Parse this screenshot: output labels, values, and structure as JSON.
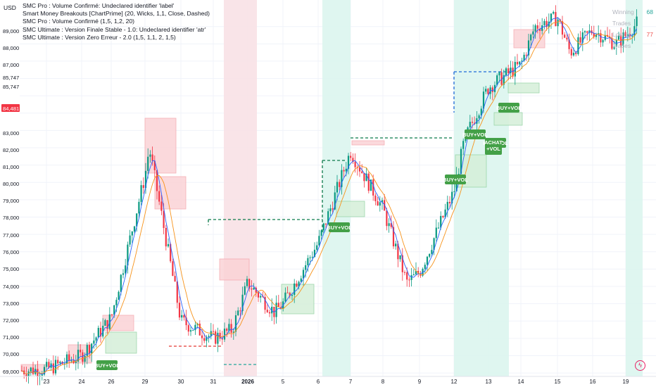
{
  "currency": "USD",
  "indicators": [
    "SMC Pro : Volume Confirmé: Undeclared identifier 'label'",
    "Smart Money Breakouts [ChartPrime] (20, Wicks, 1,1, Close, Dashed)",
    "SMC Pro : Volume Confirmé (1,5, 1,2, 20)",
    "SMC Ultimate : Version Finale Stable - 1.0: Undeclared identifier 'atr'",
    "SMC Ultimate : Version Zero Erreur - 2.0 (1,5, 1,1, 2, 1,5)"
  ],
  "stats": [
    {
      "label": "Winning Trades",
      "value": "68"
    },
    {
      "label": "Losing Trades",
      "value": "77"
    }
  ],
  "current_price": "84,481",
  "price_labels": [
    "89,000",
    "88,000",
    "87,000",
    "85,747",
    "85,747",
    "84,481",
    "83,000",
    "82,000",
    "81,000",
    "80,000",
    "79,000",
    "78,000",
    "77,000",
    "76,000",
    "75,000",
    "74,000",
    "73,000",
    "72,000",
    "71,000",
    "70,000",
    "69,000"
  ],
  "date_labels": [
    "23",
    "24",
    "26",
    "29",
    "30",
    "31",
    "2026",
    "5",
    "6",
    "7",
    "8",
    "9",
    "12",
    "13",
    "14",
    "15",
    "16",
    "19"
  ],
  "signals": [
    "BUY+VOL",
    "BUY+VOL",
    "BUY+VOL",
    "BUY+VOL",
    "BUY+VOL",
    "BUY+VOL",
    "ACHAT +VOL"
  ],
  "colors": {
    "up": "#089981",
    "down": "#f23645",
    "ma_fast": "#2962ff",
    "ma_slow": "#f7931a",
    "signal": "#43a047"
  },
  "chart_data": {
    "type": "candlestick",
    "y_axis_range": [
      68800,
      89800
    ],
    "x_labels": [
      "23",
      "24",
      "26",
      "29",
      "30",
      "31",
      "2026",
      "5",
      "6",
      "7",
      "8",
      "9",
      "12",
      "13",
      "14",
      "15",
      "16",
      "19"
    ],
    "approx_close_path": [
      {
        "date": "23",
        "close": 69200
      },
      {
        "date": "24",
        "close": 70000
      },
      {
        "date": "26",
        "close": 72200
      },
      {
        "date": "29",
        "close": 80400
      },
      {
        "date": "30",
        "close": 72000
      },
      {
        "date": "31",
        "close": 71000
      },
      {
        "date": "2026",
        "close": 74200
      },
      {
        "date": "5",
        "close": 73000
      },
      {
        "date": "6",
        "close": 76500
      },
      {
        "date": "7",
        "close": 81800
      },
      {
        "date": "8",
        "close": 78500
      },
      {
        "date": "9",
        "close": 74800
      },
      {
        "date": "12",
        "close": 79500
      },
      {
        "date": "13",
        "close": 85500
      },
      {
        "date": "14",
        "close": 86800
      },
      {
        "date": "15",
        "close": 89500
      },
      {
        "date": "16",
        "close": 88800
      },
      {
        "date": "19",
        "close": 88500
      }
    ]
  }
}
